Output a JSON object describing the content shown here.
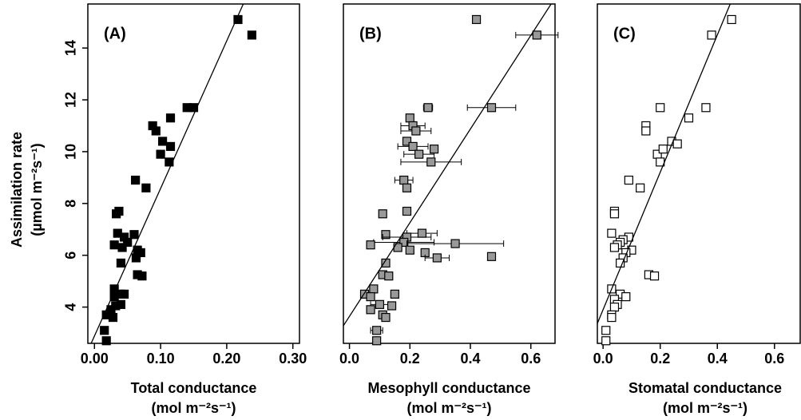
{
  "chart_data": [
    {
      "type": "scatter",
      "panel_label": "(A)",
      "xlabel": [
        "Total conductance",
        "(mol m⁻²s⁻¹)"
      ],
      "ylabel": [
        "Assimilation rate",
        "(µmol m⁻²s⁻¹)"
      ],
      "xlim": [
        -0.01,
        0.31
      ],
      "ylim": [
        2.6,
        15.7
      ],
      "xticks": [
        {
          "value": 0,
          "label": "0.00"
        },
        {
          "value": 0.1,
          "label": "0.10"
        },
        {
          "value": 0.2,
          "label": "0.20"
        },
        {
          "value": 0.3,
          "label": "0.30"
        }
      ],
      "yticks": [
        4,
        6,
        8,
        10,
        12,
        14
      ],
      "marker_color": "#000000",
      "x": [
        0.217,
        0.238,
        0.14,
        0.15,
        0.115,
        0.088,
        0.093,
        0.103,
        0.115,
        0.1,
        0.113,
        0.062,
        0.078,
        0.037,
        0.033,
        0.035,
        0.06,
        0.045,
        0.05,
        0.03,
        0.042,
        0.065,
        0.07,
        0.063,
        0.04,
        0.065,
        0.072,
        0.03,
        0.045,
        0.04,
        0.03,
        0.04,
        0.032,
        0.025,
        0.018,
        0.028,
        0.015,
        0.018
      ],
      "y": [
        15.1,
        14.5,
        11.7,
        11.7,
        11.3,
        11.0,
        10.8,
        10.4,
        10.2,
        9.9,
        9.6,
        8.9,
        8.6,
        7.7,
        7.6,
        6.85,
        6.8,
        6.7,
        6.5,
        6.4,
        6.3,
        6.2,
        6.1,
        5.9,
        5.7,
        5.25,
        5.2,
        4.7,
        4.5,
        4.5,
        4.4,
        4.1,
        4.05,
        3.9,
        3.7,
        3.6,
        3.1,
        2.7
      ],
      "fit": {
        "x": [
          -0.005,
          0.225
        ],
        "y": [
          2.6,
          15.7
        ]
      }
    },
    {
      "type": "scatter",
      "panel_label": "(B)",
      "xlabel": [
        "Mesophyll conductance",
        "(mol m⁻²s⁻¹)"
      ],
      "xlim": [
        -0.02,
        0.68
      ],
      "ylim": [
        2.6,
        15.7
      ],
      "xticks": [
        {
          "value": 0,
          "label": "0.0"
        },
        0.2,
        0.4,
        0.6
      ],
      "marker_color": "#999999",
      "x": [
        0.42,
        0.62,
        0.26,
        0.47,
        0.2,
        0.21,
        0.22,
        0.19,
        0.21,
        0.23,
        0.28,
        0.27,
        0.18,
        0.19,
        0.19,
        0.11,
        0.24,
        0.12,
        0.19,
        0.18,
        0.07,
        0.35,
        0.16,
        0.2,
        0.25,
        0.29,
        0.47,
        0.12,
        0.11,
        0.13,
        0.08,
        0.05,
        0.15,
        0.07,
        0.1,
        0.14,
        0.07,
        0.11,
        0.12,
        0.09,
        0.09
      ],
      "y": [
        15.1,
        14.5,
        11.7,
        11.7,
        11.3,
        11.0,
        10.8,
        10.4,
        10.2,
        9.9,
        10.1,
        9.6,
        8.9,
        8.6,
        7.7,
        7.6,
        6.85,
        6.8,
        6.7,
        6.5,
        6.4,
        6.45,
        6.3,
        6.2,
        6.1,
        5.9,
        5.95,
        5.7,
        5.25,
        5.2,
        4.7,
        4.5,
        4.5,
        4.4,
        4.1,
        4.05,
        3.9,
        3.7,
        3.6,
        3.1,
        2.7
      ],
      "xerr": [
        0.0,
        0.07,
        0.015,
        0.08,
        0.01,
        0.04,
        0.05,
        0.01,
        0.05,
        0.05,
        0.01,
        0.1,
        0.03,
        0.01,
        0.01,
        0.01,
        0.05,
        0.01,
        0.08,
        0.1,
        0.01,
        0.16,
        0.01,
        0.01,
        0.01,
        0.04,
        0.0,
        0.01,
        0.01,
        0.01,
        0.01,
        0.01,
        0.01,
        0.01,
        0.03,
        0.01,
        0.01,
        0.01,
        0.01,
        0.02,
        0.0
      ],
      "fit": {
        "x": [
          -0.02,
          0.667
        ],
        "y": [
          3.28,
          15.7
        ]
      }
    },
    {
      "type": "scatter",
      "panel_label": "(C)",
      "xlabel": [
        "Stomatal conductance",
        "(mol m⁻²s⁻¹)"
      ],
      "xlim": [
        -0.02,
        0.69
      ],
      "ylim": [
        2.6,
        15.7
      ],
      "xticks": [
        {
          "value": 0,
          "label": "0.0"
        },
        0.2,
        0.4,
        0.6
      ],
      "marker_color": "#ffffff",
      "x": [
        0.45,
        0.38,
        0.2,
        0.36,
        0.3,
        0.15,
        0.15,
        0.24,
        0.26,
        0.19,
        0.21,
        0.2,
        0.09,
        0.13,
        0.04,
        0.04,
        0.03,
        0.09,
        0.07,
        0.06,
        0.05,
        0.04,
        0.1,
        0.08,
        0.07,
        0.06,
        0.16,
        0.18,
        0.03,
        0.06,
        0.08,
        0.04,
        0.05,
        0.04,
        0.03,
        0.03,
        0.01,
        0.01
      ],
      "y": [
        15.1,
        14.5,
        11.7,
        11.7,
        11.3,
        11.0,
        10.8,
        10.4,
        10.3,
        9.9,
        10.1,
        9.6,
        8.9,
        8.6,
        7.7,
        7.6,
        6.85,
        6.7,
        6.6,
        6.5,
        6.4,
        6.3,
        6.2,
        6.1,
        5.9,
        5.7,
        5.25,
        5.2,
        4.7,
        4.5,
        4.4,
        4.3,
        4.1,
        4.0,
        3.7,
        3.6,
        3.1,
        2.7
      ],
      "fit": {
        "x": [
          -0.02,
          0.445
        ],
        "y": [
          3.37,
          15.7
        ]
      }
    }
  ]
}
